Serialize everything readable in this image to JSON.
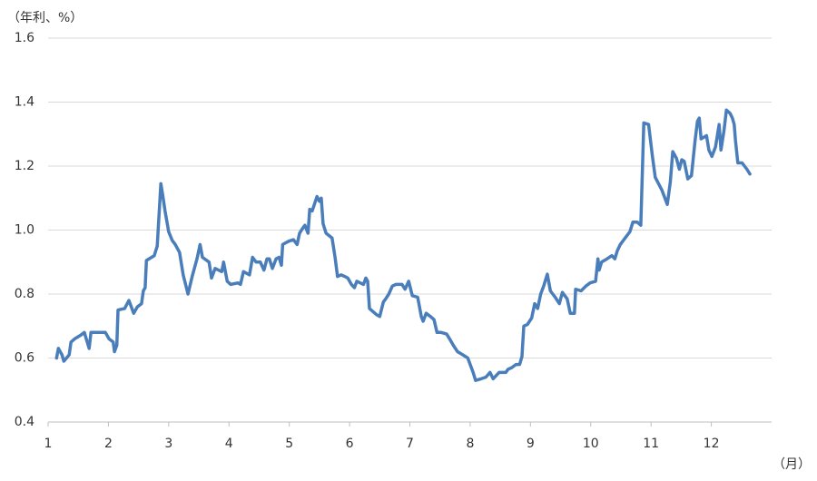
{
  "chart_data": {
    "type": "line",
    "y_label": "（年利、%）",
    "x_label": "（月）",
    "xlim": [
      1,
      13
    ],
    "xticks": [
      1,
      2,
      3,
      4,
      5,
      6,
      7,
      8,
      9,
      10,
      11,
      12
    ],
    "ylim": [
      0.4,
      1.6
    ],
    "yticks": [
      0.4,
      0.6,
      0.8,
      {
        "value": 1,
        "label": "1.0"
      },
      1.2,
      1.4,
      1.6
    ],
    "grid": true,
    "series": [
      {
        "color": "#4a7ebb",
        "x": [
          1.14,
          1.17,
          1.23,
          1.26,
          1.35,
          1.38,
          1.44,
          1.53,
          1.6,
          1.68,
          1.71,
          1.81,
          1.95,
          2.01,
          2.08,
          2.1,
          2.14,
          2.16,
          2.27,
          2.34,
          2.42,
          2.48,
          2.55,
          2.58,
          2.61,
          2.63,
          2.76,
          2.81,
          2.87,
          2.9,
          2.94,
          3.0,
          3.06,
          3.11,
          3.18,
          3.24,
          3.32,
          3.39,
          3.47,
          3.52,
          3.56,
          3.67,
          3.71,
          3.77,
          3.88,
          3.91,
          3.97,
          4.03,
          4.15,
          4.19,
          4.24,
          4.34,
          4.39,
          4.45,
          4.52,
          4.58,
          4.63,
          4.67,
          4.72,
          4.78,
          4.83,
          4.87,
          4.89,
          4.99,
          5.07,
          5.13,
          5.17,
          5.22,
          5.26,
          5.31,
          5.34,
          5.38,
          5.46,
          5.5,
          5.53,
          5.56,
          5.61,
          5.71,
          5.76,
          5.8,
          5.86,
          5.92,
          5.97,
          6.03,
          6.08,
          6.12,
          6.23,
          6.27,
          6.3,
          6.33,
          6.45,
          6.5,
          6.56,
          6.6,
          6.65,
          6.71,
          6.77,
          6.87,
          6.92,
          6.98,
          7.04,
          7.13,
          7.19,
          7.22,
          7.27,
          7.34,
          7.4,
          7.45,
          7.52,
          7.61,
          7.66,
          7.72,
          7.79,
          7.88,
          7.96,
          8.05,
          8.09,
          8.18,
          8.26,
          8.33,
          8.38,
          8.48,
          8.56,
          8.59,
          8.63,
          8.69,
          8.76,
          8.82,
          8.86,
          8.89,
          8.95,
          9.02,
          9.07,
          9.12,
          9.17,
          9.22,
          9.28,
          9.33,
          9.41,
          9.48,
          9.53,
          9.61,
          9.66,
          9.73,
          9.75,
          9.84,
          9.92,
          9.99,
          10.08,
          10.12,
          10.14,
          10.18,
          10.27,
          10.35,
          10.4,
          10.44,
          10.49,
          10.57,
          10.65,
          10.7,
          10.77,
          10.83,
          10.88,
          10.96,
          11.02,
          11.07,
          11.11,
          11.18,
          11.24,
          11.27,
          11.32,
          11.36,
          11.42,
          11.47,
          11.51,
          11.55,
          11.61,
          11.67,
          11.73,
          11.77,
          11.8,
          11.83,
          11.92,
          11.96,
          12.01,
          12.07,
          12.13,
          12.16,
          12.21,
          12.25,
          12.31,
          12.35,
          12.38,
          12.4,
          12.44,
          12.51,
          12.59,
          12.64
        ],
        "values": [
          0.6,
          0.63,
          0.61,
          0.59,
          0.61,
          0.65,
          0.66,
          0.67,
          0.68,
          0.63,
          0.68,
          0.68,
          0.68,
          0.66,
          0.65,
          0.62,
          0.64,
          0.75,
          0.755,
          0.78,
          0.74,
          0.76,
          0.77,
          0.81,
          0.82,
          0.905,
          0.92,
          0.95,
          1.145,
          1.11,
          1.06,
          0.995,
          0.967,
          0.955,
          0.93,
          0.86,
          0.8,
          0.855,
          0.91,
          0.955,
          0.915,
          0.9,
          0.85,
          0.88,
          0.87,
          0.9,
          0.84,
          0.83,
          0.835,
          0.83,
          0.87,
          0.86,
          0.915,
          0.9,
          0.9,
          0.875,
          0.91,
          0.91,
          0.88,
          0.91,
          0.915,
          0.89,
          0.955,
          0.965,
          0.97,
          0.955,
          0.99,
          1.005,
          1.015,
          0.99,
          1.065,
          1.06,
          1.105,
          1.09,
          1.1,
          1.02,
          0.99,
          0.975,
          0.915,
          0.855,
          0.86,
          0.855,
          0.85,
          0.83,
          0.82,
          0.84,
          0.83,
          0.85,
          0.84,
          0.755,
          0.735,
          0.73,
          0.775,
          0.785,
          0.8,
          0.825,
          0.83,
          0.83,
          0.815,
          0.84,
          0.795,
          0.79,
          0.73,
          0.715,
          0.74,
          0.73,
          0.72,
          0.68,
          0.68,
          0.675,
          0.66,
          0.64,
          0.62,
          0.61,
          0.6,
          0.555,
          0.53,
          0.535,
          0.54,
          0.555,
          0.535,
          0.555,
          0.555,
          0.555,
          0.565,
          0.57,
          0.58,
          0.58,
          0.605,
          0.7,
          0.705,
          0.725,
          0.77,
          0.755,
          0.8,
          0.825,
          0.862,
          0.81,
          0.79,
          0.77,
          0.805,
          0.785,
          0.74,
          0.74,
          0.815,
          0.81,
          0.825,
          0.835,
          0.84,
          0.91,
          0.875,
          0.9,
          0.91,
          0.92,
          0.91,
          0.935,
          0.955,
          0.975,
          0.995,
          1.025,
          1.025,
          1.015,
          1.335,
          1.33,
          1.235,
          1.165,
          1.15,
          1.125,
          1.095,
          1.08,
          1.15,
          1.245,
          1.225,
          1.19,
          1.22,
          1.215,
          1.16,
          1.17,
          1.28,
          1.34,
          1.35,
          1.285,
          1.295,
          1.25,
          1.23,
          1.26,
          1.33,
          1.25,
          1.31,
          1.375,
          1.365,
          1.35,
          1.33,
          1.28,
          1.21,
          1.21,
          1.19,
          1.175
        ]
      }
    ]
  }
}
